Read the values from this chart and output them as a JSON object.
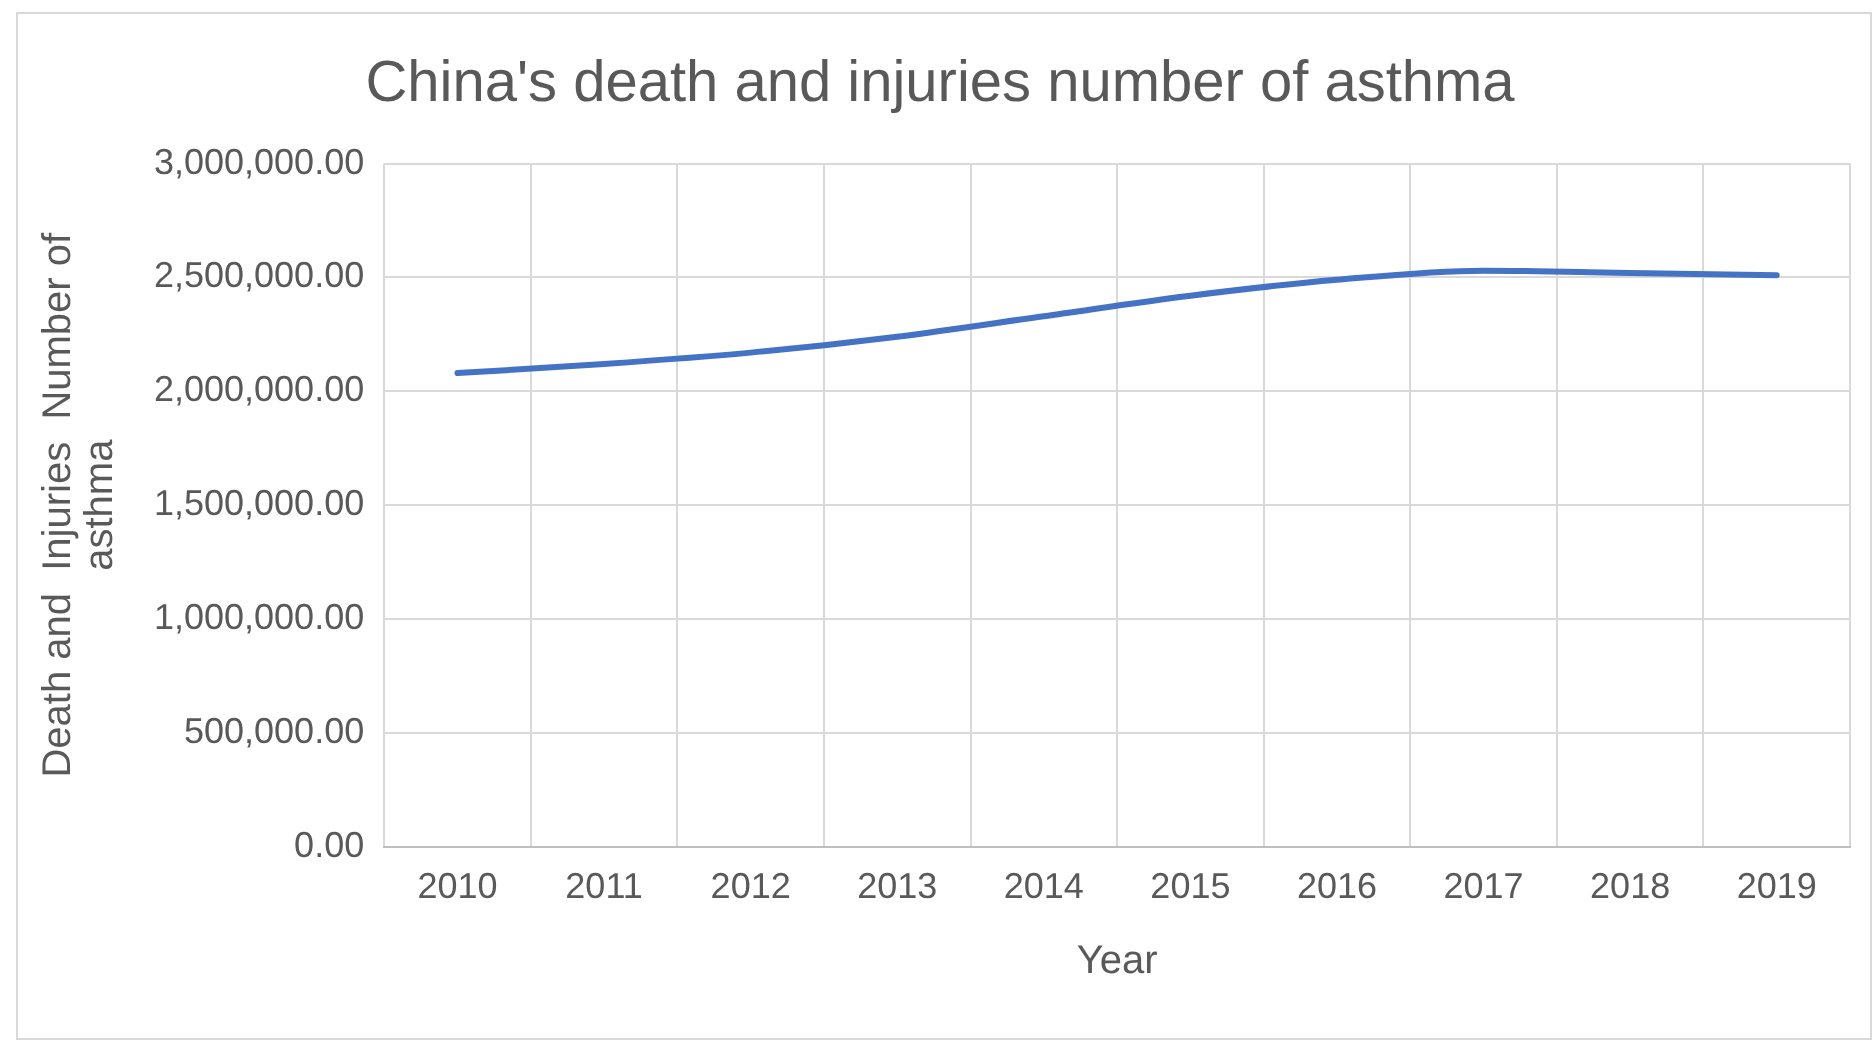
{
  "chart_data": {
    "type": "line",
    "title": "China's death and injuries number of asthma",
    "xlabel": "Year",
    "ylabel": "Death and  Injuries  Number of asthma",
    "categories": [
      "2010",
      "2011",
      "2012",
      "2013",
      "2014",
      "2015",
      "2016",
      "2017",
      "2018",
      "2019"
    ],
    "series": [
      {
        "color": "#4472c4",
        "values": [
          2080000,
          2120000,
          2170000,
          2240000,
          2330000,
          2420000,
          2490000,
          2530000,
          2520000,
          2510000
        ]
      }
    ],
    "ylim": [
      0,
      3000000
    ],
    "yticks": [
      {
        "value": 0,
        "label": "0.00"
      },
      {
        "value": 500000,
        "label": "500,000.00"
      },
      {
        "value": 1000000,
        "label": "1,000,000.00"
      },
      {
        "value": 1500000,
        "label": "1,500,000.00"
      },
      {
        "value": 2000000,
        "label": "2,000,000.00"
      },
      {
        "value": 2500000,
        "label": "2,500,000.00"
      },
      {
        "value": 3000000,
        "label": "3,000,000.00"
      }
    ],
    "grid": true,
    "legend": false,
    "marker": "none",
    "line_style": "solid"
  }
}
